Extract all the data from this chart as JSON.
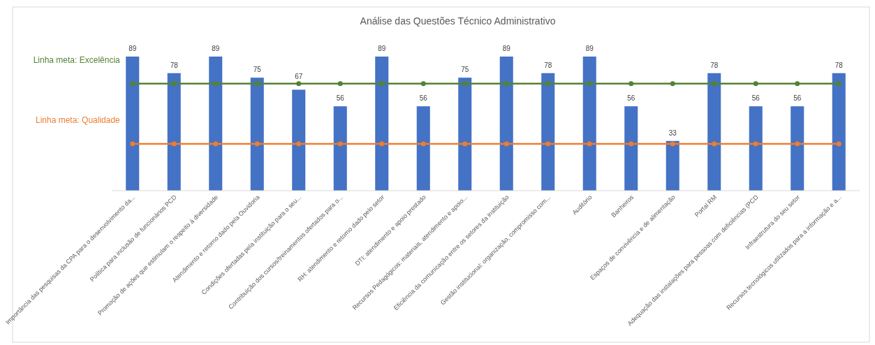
{
  "chart_data": {
    "type": "bar",
    "title": "Análise das Questões Técnico Administrativo",
    "categories": [
      "Importância das pesquisas da CPA para o desenvolvimento da...",
      "Política para inclusão de funcionários PCD",
      "Promoção de ações que estimulam o respeito à diversidade",
      "Atendimento e retorno dado pela Ouvidoria",
      "Condições ofertadas pela instituição para o seu...",
      "Contribuição dos cursos/treinamentos ofertados para o...",
      "RH: atendimento e retorno dado pelo setor",
      "DTI: atendimento e apoio prestado",
      "Recursos Pedagógicos: materiais, atendimento e apoio...",
      "Eficiência da comunicação entre os setores da instituição",
      "Gestão institucional: organização, compromisso com...",
      "Auditório",
      "Banheiros",
      "Espaços de convivência e de alimentação",
      "Portal RM",
      "Adequação das instalações para pessoas com deficiências (PCD",
      "Infraestrutura do seu setor",
      "Recursos tecnológicos utilizados para a informação e a..."
    ],
    "legend": false,
    "marker": "circle",
    "series": [
      {
        "color": "#4472c4",
        "values": [
          89,
          78,
          89,
          75,
          67,
          56,
          89,
          56,
          75,
          89,
          78,
          89,
          56,
          33,
          78,
          56,
          56,
          78
        ],
        "value_labels": [
          "89",
          "78",
          "89",
          "75",
          "67",
          "56",
          "89",
          "56",
          "75",
          "89",
          "78",
          "89",
          "56",
          "33",
          "78",
          "56",
          "56",
          "78"
        ]
      },
      {
        "type": "line",
        "name": "Linha meta: Excelência",
        "color": "#548235",
        "values": [
          71,
          71,
          71,
          71,
          71,
          71,
          71,
          71,
          71,
          71,
          71,
          71,
          71,
          71,
          71,
          71,
          71,
          71
        ]
      },
      {
        "type": "line",
        "name": "Linha meta: Qualidade",
        "color": "#ed7d31",
        "values": [
          31,
          31,
          31,
          31,
          31,
          31,
          31,
          31,
          31,
          31,
          31,
          31,
          31,
          31,
          31,
          31,
          31,
          31
        ]
      }
    ]
  }
}
